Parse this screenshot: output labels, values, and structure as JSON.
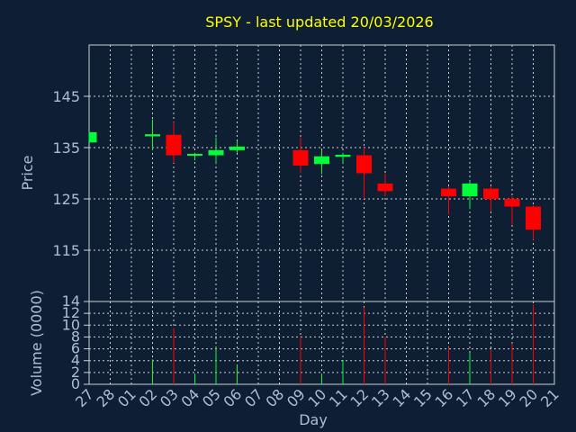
{
  "chart_data": {
    "type": "candlestick",
    "title": "SPSY - last updated 20/03/2026",
    "price_panel": {
      "ylabel": "Price",
      "ylim": [
        105,
        155
      ],
      "yticks": [
        115,
        125,
        135,
        145
      ],
      "grid": true
    },
    "volume_panel": {
      "ylabel": "Volume (0000)",
      "ylim": [
        0,
        14
      ],
      "yticks": [
        0,
        2,
        4,
        6,
        8,
        10,
        12,
        14
      ],
      "grid": true
    },
    "xlabel": "Day",
    "x_ticks": [
      "27",
      "28",
      "01",
      "02",
      "03",
      "04",
      "05",
      "06",
      "07",
      "08",
      "09",
      "10",
      "11",
      "12",
      "13",
      "14",
      "15",
      "16",
      "17",
      "18",
      "19",
      "20",
      "21"
    ],
    "candles": [
      {
        "day": "27",
        "open": 136.0,
        "close": 138.0,
        "high": 138.0,
        "low": 136.0,
        "volume": 0.0
      },
      {
        "day": "02",
        "open": 137.2,
        "close": 137.6,
        "high": 140.5,
        "low": 134.5,
        "volume": 4.2
      },
      {
        "day": "03",
        "open": 137.5,
        "close": 133.5,
        "high": 140.0,
        "low": 132.0,
        "volume": 9.5
      },
      {
        "day": "04",
        "open": 133.3,
        "close": 133.6,
        "high": 134.0,
        "low": 132.5,
        "volume": 1.8
      },
      {
        "day": "05",
        "open": 133.5,
        "close": 134.5,
        "high": 137.0,
        "low": 132.0,
        "volume": 6.2
      },
      {
        "day": "06",
        "open": 134.5,
        "close": 135.2,
        "high": 136.3,
        "low": 134.0,
        "volume": 3.3
      },
      {
        "day": "09",
        "open": 134.5,
        "close": 131.5,
        "high": 137.0,
        "low": 130.0,
        "volume": 8.2
      },
      {
        "day": "10",
        "open": 131.8,
        "close": 133.3,
        "high": 134.5,
        "low": 129.8,
        "volume": 1.8
      },
      {
        "day": "11",
        "open": 133.2,
        "close": 133.6,
        "high": 134.0,
        "low": 132.0,
        "volume": 4.0
      },
      {
        "day": "12",
        "open": 133.5,
        "close": 130.0,
        "high": 135.0,
        "low": 125.0,
        "volume": 13.0
      },
      {
        "day": "13",
        "open": 128.0,
        "close": 126.5,
        "high": 130.0,
        "low": 125.5,
        "volume": 8.0
      },
      {
        "day": "16",
        "open": 127.0,
        "close": 125.5,
        "high": 127.5,
        "low": 122.0,
        "volume": 6.3
      },
      {
        "day": "17",
        "open": 125.5,
        "close": 128.0,
        "high": 128.5,
        "low": 123.0,
        "volume": 5.3
      },
      {
        "day": "18",
        "open": 127.0,
        "close": 125.0,
        "high": 127.5,
        "low": 122.5,
        "volume": 5.8
      },
      {
        "day": "19",
        "open": 125.0,
        "close": 123.5,
        "high": 125.5,
        "low": 120.0,
        "volume": 6.9
      },
      {
        "day": "20",
        "open": 123.5,
        "close": 119.0,
        "high": 123.8,
        "low": 117.0,
        "volume": 13.5
      }
    ],
    "colors": {
      "background": "#0f1f33",
      "plot_background": "#0f1f33",
      "up": "#00ff3a",
      "down": "#ff0000",
      "grid": "#c9d0d8",
      "axis_text": "#a9bfd6",
      "title": "#ffff00",
      "frame": "#c9d0d8"
    }
  }
}
